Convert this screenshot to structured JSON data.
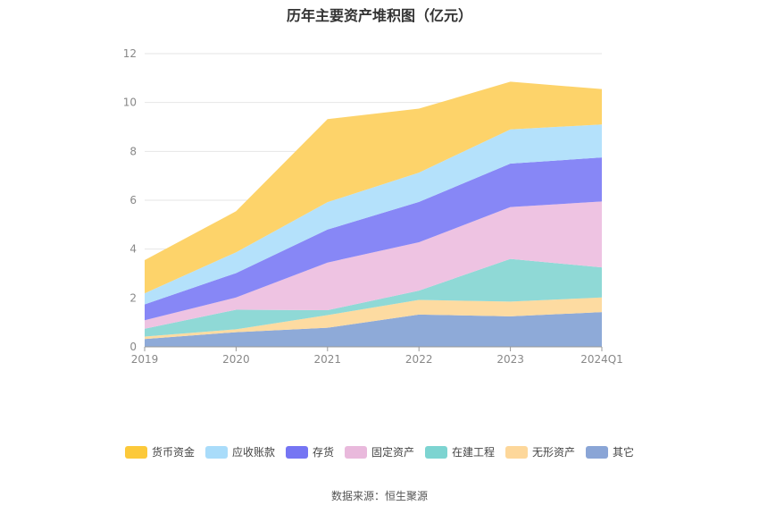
{
  "chart_data": {
    "type": "area",
    "stacked": true,
    "title": "历年主要资产堆积图（亿元）",
    "categories": [
      "2019",
      "2020",
      "2021",
      "2022",
      "2023",
      "2024Q1"
    ],
    "ylim": [
      0,
      12
    ],
    "yticks": [
      0,
      2,
      4,
      6,
      8,
      10,
      12
    ],
    "grid": true,
    "legend_position": "bottom",
    "series": [
      {
        "name": "其它",
        "color": "#8eaad8",
        "values": [
          0.32,
          0.6,
          0.78,
          1.32,
          1.25,
          1.42
        ]
      },
      {
        "name": "无形资产",
        "color": "#fddba1",
        "values": [
          0.1,
          0.12,
          0.52,
          0.6,
          0.6,
          0.6
        ]
      },
      {
        "name": "在建工程",
        "color": "#8fd9d6",
        "values": [
          0.32,
          0.8,
          0.2,
          0.38,
          1.75,
          1.23
        ]
      },
      {
        "name": "固定资产",
        "color": "#eec3e2",
        "values": [
          0.35,
          0.5,
          1.95,
          1.98,
          2.12,
          2.7
        ]
      },
      {
        "name": "存货",
        "color": "#8787f6",
        "values": [
          0.65,
          1.0,
          1.35,
          1.65,
          1.78,
          1.8
        ]
      },
      {
        "name": "应收账款",
        "color": "#b4e1fb",
        "values": [
          0.45,
          0.85,
          1.12,
          1.2,
          1.4,
          1.35
        ]
      },
      {
        "name": "货币资金",
        "color": "#fdd36a",
        "values": [
          1.36,
          1.68,
          3.4,
          2.62,
          1.95,
          1.45
        ]
      }
    ]
  },
  "legend_order": [
    "货币资金",
    "应收账款",
    "存货",
    "固定资产",
    "在建工程",
    "无形资产",
    "其它"
  ],
  "legend_colors": {
    "货币资金": "#fcc93a",
    "应收账款": "#a9dcfa",
    "存货": "#7575f3",
    "固定资产": "#e9b9dc",
    "在建工程": "#7dd4d1",
    "无形资产": "#fdd79a",
    "其它": "#8aa5d6"
  },
  "source": "数据来源：恒生聚源"
}
